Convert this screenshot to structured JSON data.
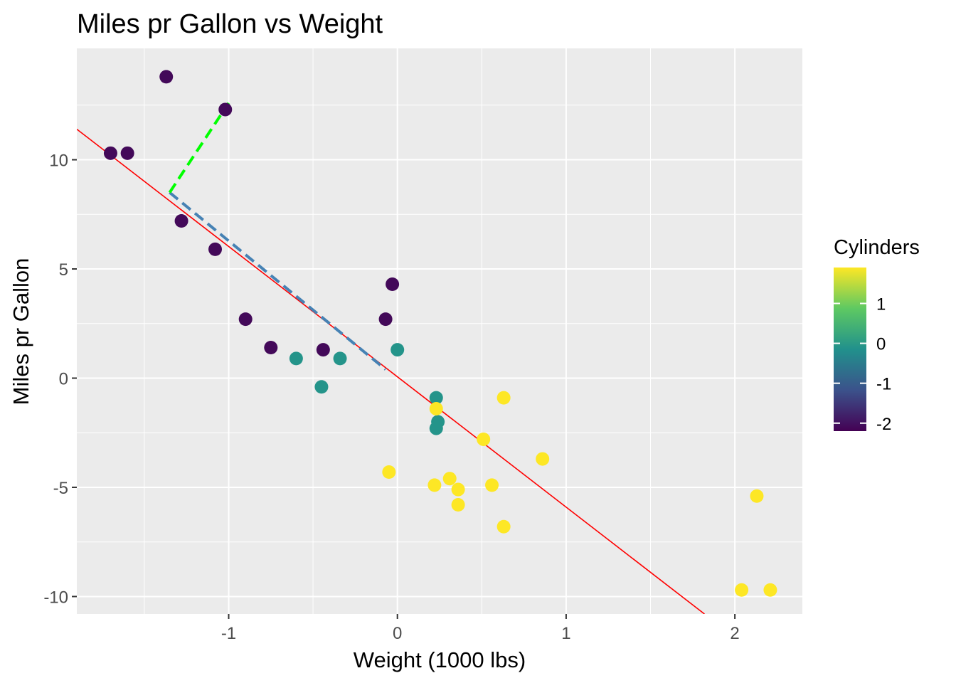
{
  "chart_data": {
    "type": "scatter",
    "title": "Miles pr Gallon vs Weight",
    "xlabel": "Weight (1000 lbs)",
    "ylabel": "Miles pr Gallon",
    "xlim": [
      -1.9,
      2.4
    ],
    "ylim": [
      -10.8,
      15.1
    ],
    "x_ticks": [
      -1,
      0,
      1,
      2
    ],
    "y_ticks": [
      -10,
      -5,
      0,
      5,
      10
    ],
    "x_tick_labels": [
      "-1",
      "0",
      "1",
      "2"
    ],
    "y_tick_labels": [
      "-10",
      "-5",
      "0",
      "5",
      "10"
    ],
    "grid": true,
    "background": "#ebebeb",
    "colorbar": {
      "title": "Cylinders",
      "range": [
        -2.2,
        1.9
      ],
      "ticks": [
        1,
        0,
        -1,
        -2
      ],
      "tick_labels": [
        "1",
        "0",
        "-1",
        "-2"
      ],
      "colors": [
        "#440154",
        "#3b528b",
        "#21918c",
        "#5ec962",
        "#fde725"
      ],
      "placement": "right"
    },
    "points": [
      {
        "x": -1.37,
        "y": 13.8,
        "c": -2.1
      },
      {
        "x": -1.02,
        "y": 12.3,
        "c": -2.1
      },
      {
        "x": -1.7,
        "y": 10.3,
        "c": -2.1
      },
      {
        "x": -1.6,
        "y": 10.3,
        "c": -2.1
      },
      {
        "x": -1.28,
        "y": 7.2,
        "c": -2.1
      },
      {
        "x": -1.08,
        "y": 5.9,
        "c": -2.1
      },
      {
        "x": -0.9,
        "y": 2.7,
        "c": -2.1
      },
      {
        "x": -0.75,
        "y": 1.4,
        "c": -2.1
      },
      {
        "x": -0.44,
        "y": 1.3,
        "c": -2.1
      },
      {
        "x": -0.07,
        "y": 2.7,
        "c": -2.1
      },
      {
        "x": -0.03,
        "y": 4.3,
        "c": -2.1
      },
      {
        "x": -0.6,
        "y": 0.9,
        "c": -0.1
      },
      {
        "x": -0.34,
        "y": 0.9,
        "c": -0.1
      },
      {
        "x": -0.45,
        "y": -0.4,
        "c": -0.1
      },
      {
        "x": 0.0,
        "y": 1.3,
        "c": -0.1
      },
      {
        "x": 0.23,
        "y": -0.9,
        "c": -0.1
      },
      {
        "x": 0.24,
        "y": -2.0,
        "c": -0.1
      },
      {
        "x": 0.23,
        "y": -2.3,
        "c": -0.1
      },
      {
        "x": 0.23,
        "y": -1.4,
        "c": 1.9
      },
      {
        "x": 0.63,
        "y": -0.9,
        "c": 1.9
      },
      {
        "x": 0.51,
        "y": -2.8,
        "c": 1.9
      },
      {
        "x": 0.86,
        "y": -3.7,
        "c": 1.9
      },
      {
        "x": -0.05,
        "y": -4.3,
        "c": 1.9
      },
      {
        "x": 0.22,
        "y": -4.9,
        "c": 1.9
      },
      {
        "x": 0.31,
        "y": -4.6,
        "c": 1.9
      },
      {
        "x": 0.36,
        "y": -5.1,
        "c": 1.9
      },
      {
        "x": 0.56,
        "y": -4.9,
        "c": 1.9
      },
      {
        "x": 0.36,
        "y": -5.8,
        "c": 1.9
      },
      {
        "x": 0.63,
        "y": -6.8,
        "c": 1.9
      },
      {
        "x": 2.13,
        "y": -5.4,
        "c": 1.9
      },
      {
        "x": 2.04,
        "y": -9.7,
        "c": 1.9
      },
      {
        "x": 2.21,
        "y": -9.7,
        "c": 1.9
      }
    ],
    "regression_line": {
      "x": [
        -1.9,
        1.82
      ],
      "y": [
        11.4,
        -10.8
      ],
      "color": "#ff0000"
    },
    "projection_line": {
      "x": [
        -1.35,
        -0.07
      ],
      "y": [
        8.5,
        0.4
      ],
      "color": "#4682b4",
      "dash": "dashed"
    },
    "residual_line": {
      "x": [
        -1.35,
        -1.0
      ],
      "y": [
        8.5,
        12.6
      ],
      "color": "#00ff00",
      "dash": "dashed"
    }
  }
}
